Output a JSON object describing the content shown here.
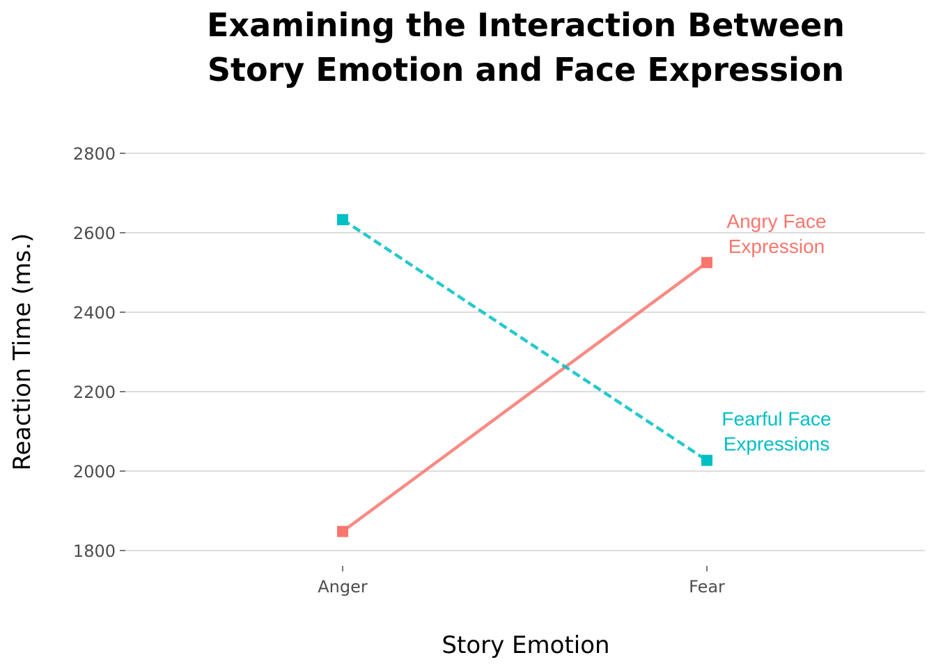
{
  "chart_data": {
    "type": "line",
    "title": [
      "Examining the Interaction Between",
      "Story Emotion and Face Expression"
    ],
    "xlabel": "Story Emotion",
    "ylabel": "Reaction Time (ms.)",
    "categories": [
      "Anger",
      "Fear"
    ],
    "ylim": [
      1770,
      2830
    ],
    "yticks": [
      1800,
      2000,
      2200,
      2400,
      2600,
      2800
    ],
    "grid": true,
    "legend": "none",
    "series": [
      {
        "name": [
          "Angry Face",
          "Expression"
        ],
        "values": [
          1848,
          2525
        ],
        "color": "#F8766D",
        "line_style": "solid"
      },
      {
        "name": [
          "Fearful Face",
          "Expressions"
        ],
        "values": [
          2633,
          2027
        ],
        "color": "#00BFC4",
        "line_style": "dashed"
      }
    ]
  }
}
